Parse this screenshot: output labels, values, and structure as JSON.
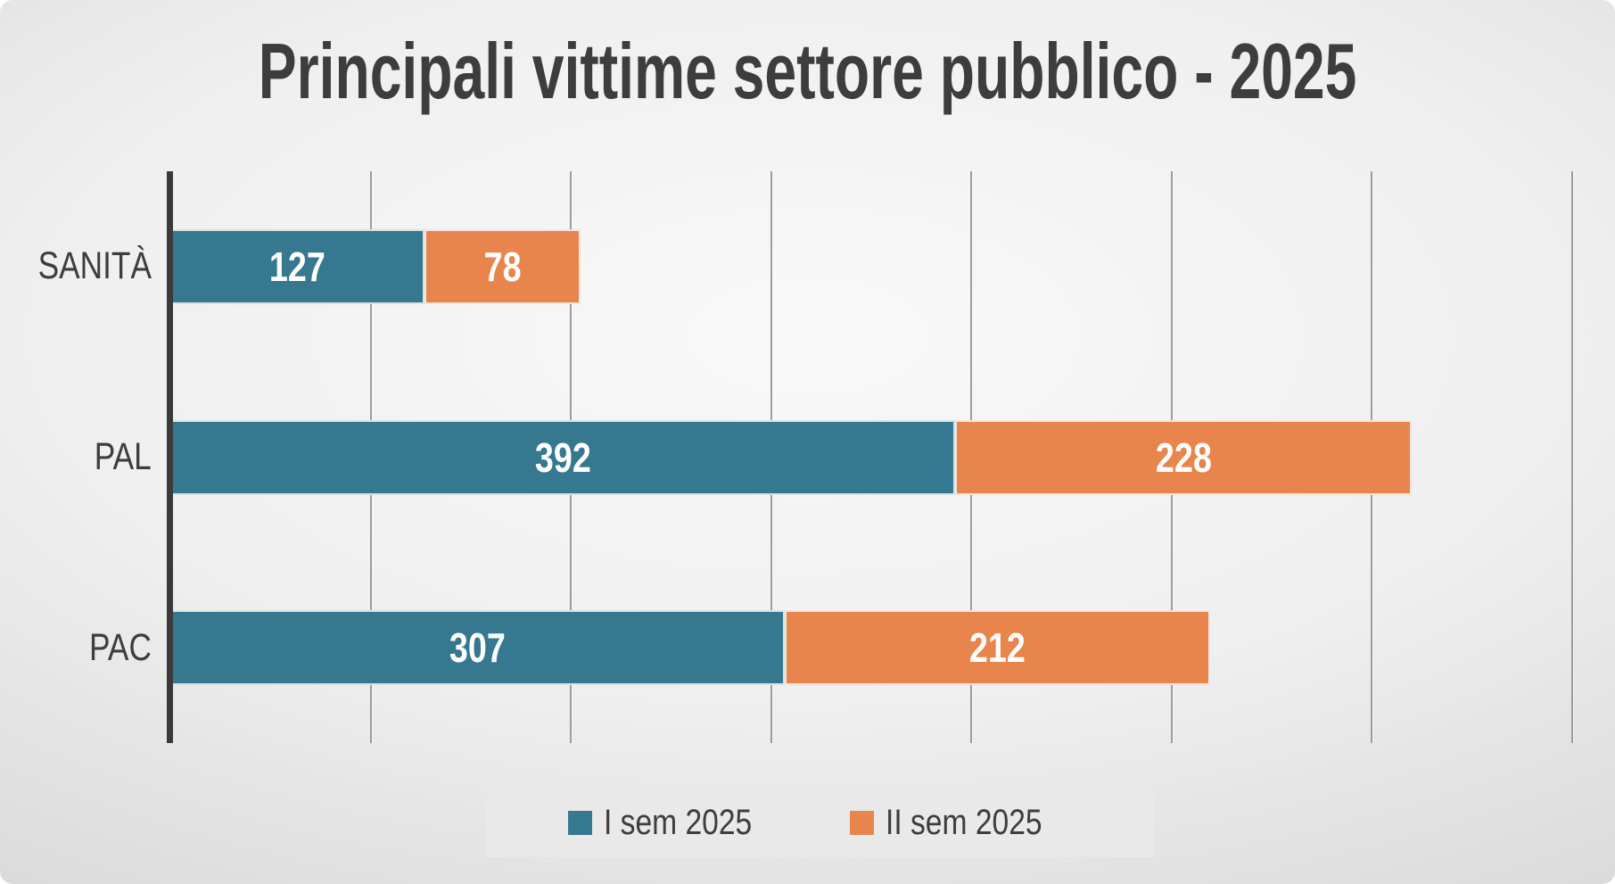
{
  "slide": {
    "title": "Principali vittime settore pubblico - 2025"
  },
  "chart_data": {
    "type": "bar",
    "orientation": "horizontal",
    "stacked": true,
    "title": "Principali vittime settore pubblico - 2025",
    "categories": [
      "SANITÀ",
      "PAL",
      "PAC"
    ],
    "series": [
      {
        "name": "I sem 2025",
        "color": "#36788F",
        "values": [
          127,
          392,
          307
        ]
      },
      {
        "name": "II sem 2025",
        "color": "#E8854C",
        "values": [
          78,
          228,
          212
        ]
      }
    ],
    "totals": [
      205,
      620,
      519
    ],
    "xlim": [
      0,
      700
    ],
    "grid_step": 100,
    "grid": true,
    "x_tick_labels_visible": false,
    "legend_position": "bottom-center",
    "colors": {
      "axis": "#3A3A3A",
      "gridline": "#9C9C9C",
      "category_label": "#3D3D3D",
      "value_label": "#FFFFFF",
      "title": "#3D3D3D",
      "legend_background": "#E9E9E9",
      "slide_background_center": "#F9F9F9",
      "slide_background_edge": "#C5C5C5"
    }
  }
}
